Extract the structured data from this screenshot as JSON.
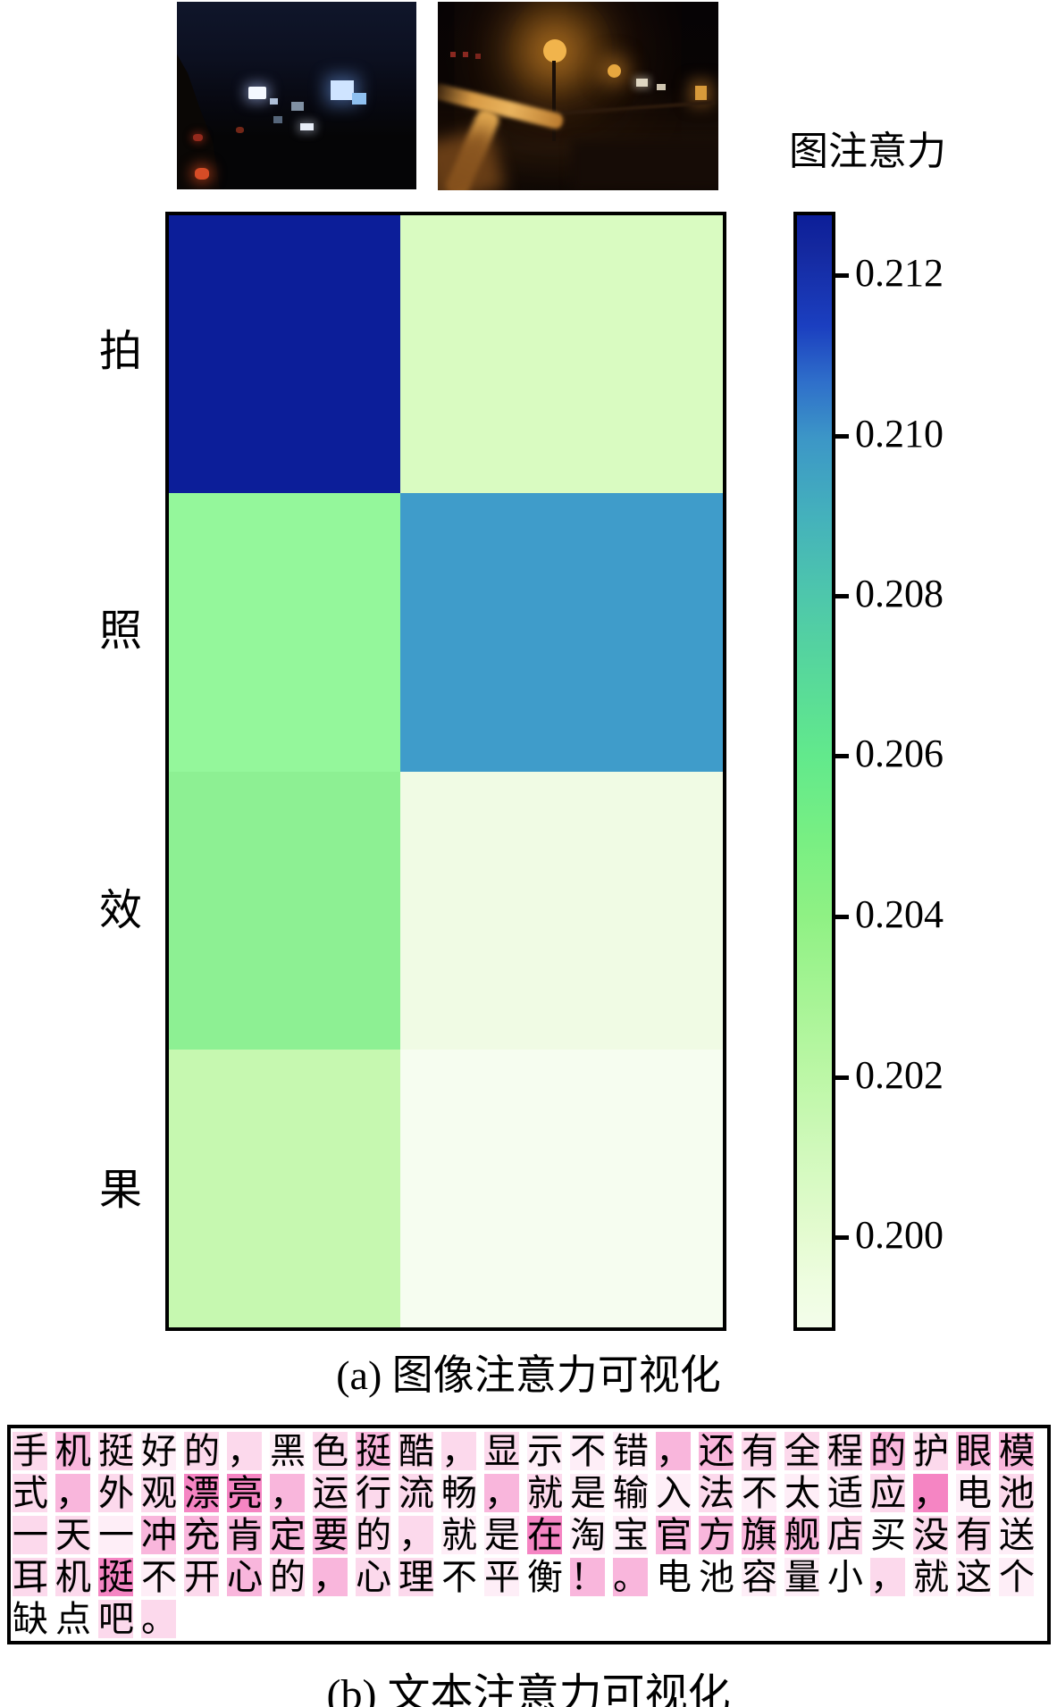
{
  "captions": {
    "a": "(a) 图像注意力可视化",
    "b": "(b) 文本注意力可视化"
  },
  "colorbar": {
    "title": "图注意力",
    "ticks": [
      {
        "label": "0.212",
        "pos": 5.7
      },
      {
        "label": "0.210",
        "pos": 20.0
      },
      {
        "label": "0.208",
        "pos": 34.3
      },
      {
        "label": "0.206",
        "pos": 48.6
      },
      {
        "label": "0.204",
        "pos": 63.0
      },
      {
        "label": "0.202",
        "pos": 77.3
      },
      {
        "label": "0.200",
        "pos": 91.6
      }
    ],
    "gradient": [
      "#0c1e99 0%",
      "#14289f 3%",
      "#1b3fc0 10%",
      "#2f6fca 15%",
      "#3c96c7 20%",
      "#44b1bc 27%",
      "#4ec7ab 34.3%",
      "#57d89b 41%",
      "#62e98c 48.6%",
      "#78ef83 56%",
      "#8ff184 63%",
      "#a5f494 70%",
      "#bcf7a6 77.3%",
      "#d0f9bb 84%",
      "#e4fbd0 91.6%",
      "#eefde0 96%",
      "#f3fdea 100%"
    ]
  },
  "heatmap": {
    "row_labels": [
      "拍",
      "照",
      "效",
      "果"
    ],
    "cells": [
      [
        "#0c1e99",
        "#d9fbc1"
      ],
      [
        "#94f79b",
        "#3f9cca"
      ],
      [
        "#8df093",
        "#f0fbe4"
      ],
      [
        "#c6f8b0",
        "#f6fdf0"
      ]
    ]
  },
  "chart_data": [
    {
      "type": "heatmap",
      "title": "图注意力",
      "caption": "(a) 图像注意力可视化",
      "rows": [
        "拍",
        "照",
        "效",
        "果"
      ],
      "columns": [
        "image-1",
        "image-2"
      ],
      "values": [
        [
          0.2128,
          0.2014
        ],
        [
          0.2053,
          0.21
        ],
        [
          0.205,
          0.1998
        ],
        [
          0.2022,
          0.1992
        ]
      ],
      "colorbar": {
        "label": "图注意力",
        "ticks": [
          0.2,
          0.202,
          0.204,
          0.206,
          0.208,
          0.21,
          0.212
        ],
        "range": [
          0.1988,
          0.213
        ]
      },
      "legend_position": "right",
      "grid": false
    },
    {
      "type": "heatmap",
      "subtype": "text-token-attention",
      "caption": "(b) 文本注意力可视化",
      "text_lines": [
        "手机挺好的，黑色挺酷，显示不错，还有全程的护眼模",
        "式，外观漂亮，运行流畅，就是输入法不太适应，电池",
        "一天一冲充肯定要的，就是在淘宝官方旗舰店买没有送",
        "耳机挺不开心的，心理不平衡！。电池容量小，就这个",
        "缺点吧。"
      ],
      "levels_0_to_4": [
        [
          2,
          3,
          2,
          1,
          2,
          2,
          1,
          2,
          3,
          2,
          2,
          2,
          1,
          1,
          1,
          3,
          3,
          2,
          2,
          2,
          3,
          2,
          3,
          3
        ],
        [
          2,
          3,
          2,
          2,
          4,
          4,
          3,
          2,
          2,
          2,
          1,
          3,
          2,
          1,
          1,
          1,
          2,
          1,
          1,
          1,
          2,
          4,
          1,
          2
        ],
        [
          2,
          2,
          1,
          3,
          3,
          3,
          3,
          3,
          2,
          2,
          1,
          1,
          4,
          1,
          1,
          3,
          3,
          3,
          3,
          2,
          0,
          2,
          2,
          1
        ],
        [
          2,
          2,
          4,
          1,
          2,
          3,
          2,
          3,
          2,
          2,
          0,
          1,
          0,
          3,
          3,
          0,
          0,
          1,
          1,
          0,
          2,
          1,
          1,
          1
        ],
        [
          0,
          0,
          2,
          2
        ]
      ]
    }
  ],
  "text_panel": {
    "level_colors": {
      "1": "#feeef7",
      "2": "#fcd9ec",
      "3": "#f9b6dc",
      "4": "#f585c3"
    },
    "lines": [
      [
        [
          "手",
          2
        ],
        [
          "机",
          3
        ],
        [
          "挺",
          2
        ],
        [
          "好",
          1
        ],
        [
          "的",
          2
        ],
        [
          "，",
          2
        ],
        [
          "黑",
          1
        ],
        [
          "色",
          2
        ],
        [
          "挺",
          3
        ],
        [
          "酷",
          2
        ],
        [
          "，",
          2
        ],
        [
          "显",
          2
        ],
        [
          "示",
          1
        ],
        [
          "不",
          1
        ],
        [
          "错",
          1
        ],
        [
          "，",
          3
        ],
        [
          "还",
          3
        ],
        [
          "有",
          2
        ],
        [
          "全",
          2
        ],
        [
          "程",
          2
        ],
        [
          "的",
          3
        ],
        [
          "护",
          2
        ],
        [
          "眼",
          3
        ],
        [
          "模",
          3
        ]
      ],
      [
        [
          "式",
          2
        ],
        [
          "，",
          3
        ],
        [
          "外",
          2
        ],
        [
          "观",
          2
        ],
        [
          "漂",
          4
        ],
        [
          "亮",
          4
        ],
        [
          "，",
          3
        ],
        [
          "运",
          2
        ],
        [
          "行",
          2
        ],
        [
          "流",
          2
        ],
        [
          "畅",
          1
        ],
        [
          "，",
          3
        ],
        [
          "就",
          2
        ],
        [
          "是",
          1
        ],
        [
          "输",
          1
        ],
        [
          "入",
          1
        ],
        [
          "法",
          2
        ],
        [
          "不",
          1
        ],
        [
          "太",
          1
        ],
        [
          "适",
          1
        ],
        [
          "应",
          2
        ],
        [
          "，",
          4
        ],
        [
          "电",
          1
        ],
        [
          "池",
          2
        ]
      ],
      [
        [
          "一",
          2
        ],
        [
          "天",
          2
        ],
        [
          "一",
          1
        ],
        [
          "冲",
          3
        ],
        [
          "充",
          3
        ],
        [
          "肯",
          3
        ],
        [
          "定",
          3
        ],
        [
          "要",
          3
        ],
        [
          "的",
          2
        ],
        [
          "，",
          2
        ],
        [
          "就",
          1
        ],
        [
          "是",
          1
        ],
        [
          "在",
          4
        ],
        [
          "淘",
          1
        ],
        [
          "宝",
          1
        ],
        [
          "官",
          3
        ],
        [
          "方",
          3
        ],
        [
          "旗",
          3
        ],
        [
          "舰",
          3
        ],
        [
          "店",
          2
        ],
        [
          "买",
          0
        ],
        [
          "没",
          2
        ],
        [
          "有",
          2
        ],
        [
          "送",
          1
        ]
      ],
      [
        [
          "耳",
          2
        ],
        [
          "机",
          2
        ],
        [
          "挺",
          4
        ],
        [
          "不",
          1
        ],
        [
          "开",
          2
        ],
        [
          "心",
          3
        ],
        [
          "的",
          2
        ],
        [
          "，",
          3
        ],
        [
          "心",
          2
        ],
        [
          "理",
          2
        ],
        [
          "不",
          0
        ],
        [
          "平",
          1
        ],
        [
          "衡",
          0
        ],
        [
          "！",
          3
        ],
        [
          "。",
          3
        ],
        [
          "电",
          0
        ],
        [
          "池",
          0
        ],
        [
          "容",
          1
        ],
        [
          "量",
          1
        ],
        [
          "小",
          0
        ],
        [
          "，",
          2
        ],
        [
          "就",
          1
        ],
        [
          "这",
          1
        ],
        [
          "个",
          1
        ]
      ],
      [
        [
          "缺",
          0
        ],
        [
          "点",
          0
        ],
        [
          "吧",
          2
        ],
        [
          "。",
          2
        ]
      ]
    ]
  }
}
